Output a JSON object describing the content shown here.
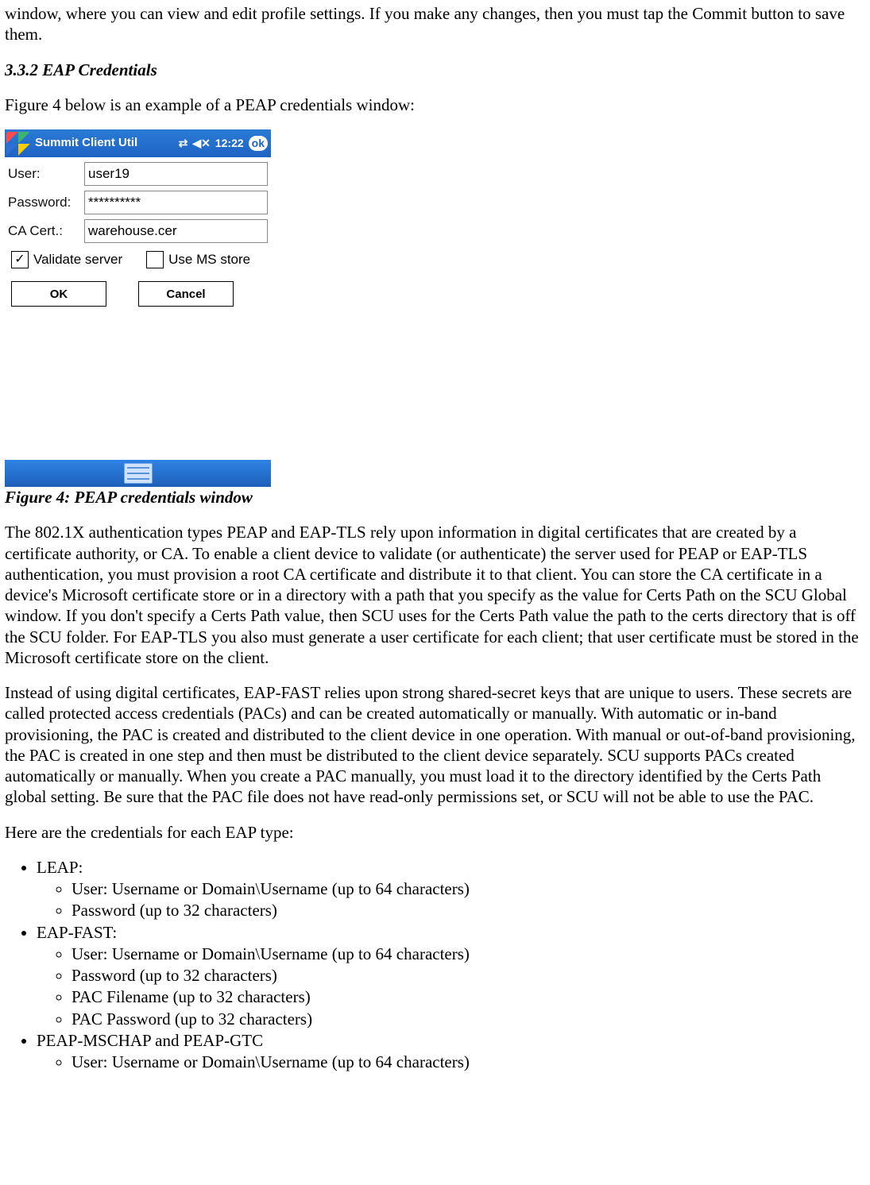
{
  "intro_para": "window, where you can view and edit profile settings. If you make any changes, then you must tap the Commit button to save them.",
  "section_heading": "3.3.2 EAP Credentials",
  "figure_intro": "Figure 4 below is an example of a PEAP credentials window:",
  "figure_caption": "Figure 4: PEAP credentials window",
  "screenshot": {
    "title": "Summit Client Util",
    "clock": "12:22",
    "ok_badge": "ok",
    "labels": {
      "user": "User:",
      "password": "Password:",
      "cacert": "CA Cert.:"
    },
    "values": {
      "user": "user19",
      "password": "**********",
      "cacert": "warehouse.cer"
    },
    "checks": {
      "validate": {
        "label": "Validate server",
        "checked": true
      },
      "msstore": {
        "label": "Use MS store",
        "checked": false
      }
    },
    "buttons": {
      "ok": "OK",
      "cancel": "Cancel"
    }
  },
  "para_802": "The 802.1X authentication types PEAP and EAP-TLS rely upon information in digital certificates that are created by a certificate authority, or CA. To enable a client device to validate (or authenticate) the server used for PEAP or EAP-TLS authentication, you must provision a root CA certificate and distribute it to that client. You can store the CA certificate in a device's Microsoft certificate store or in a directory with a path that you specify as the value for Certs Path on the SCU Global window. If you don't specify a Certs Path value, then SCU uses for the Certs Path value the path to the certs directory that is off the SCU folder. For EAP-TLS you also must generate a user certificate for each client; that user certificate must be stored in the Microsoft certificate store on the client.",
  "para_fast": "Instead of using digital certificates, EAP-FAST relies upon strong shared-secret keys that are unique to users. These secrets are called protected access credentials (PACs) and can be created automatically or manually.  With automatic or in-band provisioning, the PAC is created and distributed to the client device in one operation. With manual or out-of-band provisioning, the PAC is created in one step and then must be distributed to the client device separately. SCU supports PACs created automatically or manually. When you create a PAC manually, you must load it to the directory identified by the Certs Path global setting. Be sure that the PAC file does not have read-only permissions set, or SCU will not be able to use the PAC.",
  "creds_intro": "Here are the credentials for each EAP type:",
  "list": {
    "leap": {
      "title": "LEAP:",
      "items": [
        "User: Username or Domain\\Username (up to 64 characters)",
        "Password (up to 32 characters)"
      ]
    },
    "eapfast": {
      "title": "EAP-FAST:",
      "items": [
        "User: Username or Domain\\Username (up to 64 characters)",
        "Password (up to 32 characters)",
        "PAC Filename (up to 32 characters)",
        "PAC Password (up to 32 characters)"
      ]
    },
    "peap": {
      "title": "PEAP-MSCHAP and PEAP-GTC",
      "items": [
        "User: Username or Domain\\Username (up to 64 characters)"
      ]
    }
  }
}
